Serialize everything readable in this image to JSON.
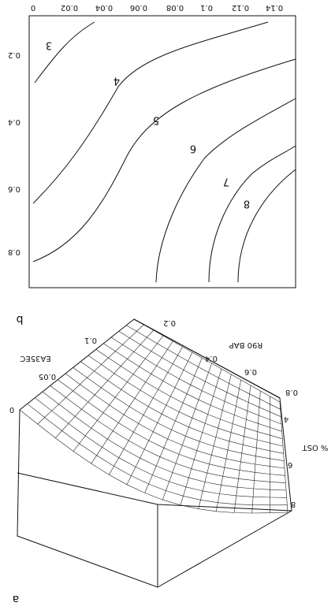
{
  "panel_b": {
    "label": "b",
    "x_ticks": [
      "0",
      "0.02",
      "0.04",
      "0.06",
      "0.08",
      "0.1",
      "0.12",
      "0.14"
    ],
    "y_ticks": [
      "0.2",
      "0.4",
      "0.6",
      "0.8"
    ],
    "contour_labels": [
      "3",
      "4",
      "5",
      "6",
      "7",
      "8"
    ]
  },
  "panel_a": {
    "label": "a",
    "axis_1_ticks": [
      "0",
      "0.05",
      "0.1"
    ],
    "axis_2_ticks": [
      "0.2",
      "0.4",
      "0.6",
      "0.8"
    ],
    "axis_3_ticks": [
      "4",
      "6",
      "8"
    ],
    "axis_1_title": "EA35EC",
    "axis_2_title": "R90 BAP",
    "axis_3_title": "% OST"
  }
}
